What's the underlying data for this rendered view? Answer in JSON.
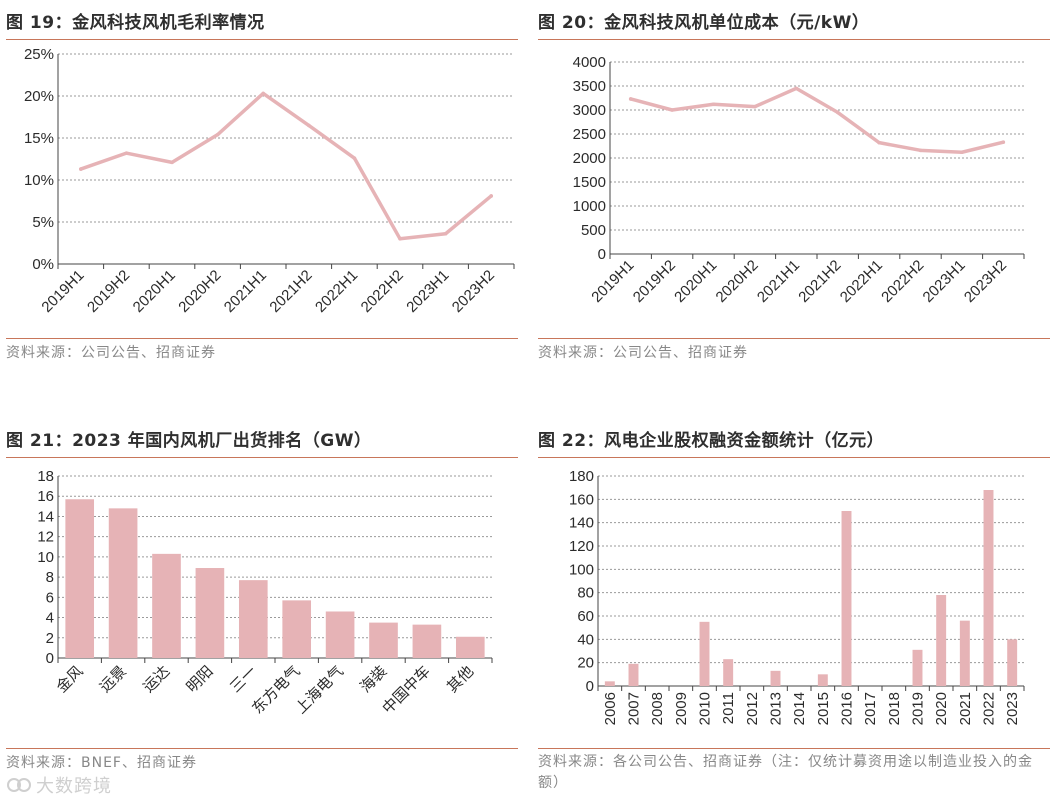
{
  "colors": {
    "series": "#e6b3b6",
    "rule": "#c8765a",
    "grid": "#9a9a9a"
  },
  "charts": [
    {
      "title": "图 19：金风科技风机毛利率情况",
      "source": "资料来源：公司公告、招商证券",
      "chart_data": {
        "type": "line",
        "categories": [
          "2019H1",
          "2019H2",
          "2020H1",
          "2020H2",
          "2021H1",
          "2021H2",
          "2022H1",
          "2022H2",
          "2023H1",
          "2023H2"
        ],
        "values": [
          11.3,
          13.2,
          12.1,
          15.4,
          20.3,
          16.5,
          12.6,
          3.0,
          3.6,
          8.1
        ],
        "ylim": [
          0,
          25
        ],
        "yticks": [
          0,
          5,
          10,
          15,
          20,
          25
        ],
        "ytick_labels": [
          "0%",
          "5%",
          "10%",
          "15%",
          "20%",
          "25%"
        ],
        "grid": true,
        "xlabel": "",
        "ylabel": ""
      }
    },
    {
      "title": "图 20：金风科技风机单位成本（元/kW）",
      "source": "资料来源：公司公告、招商证券",
      "chart_data": {
        "type": "line",
        "categories": [
          "2019H1",
          "2019H2",
          "2020H1",
          "2020H2",
          "2021H1",
          "2021H2",
          "2022H1",
          "2022H2",
          "2023H1",
          "2023H2"
        ],
        "values": [
          3230,
          3000,
          3120,
          3070,
          3450,
          2950,
          2320,
          2160,
          2120,
          2330
        ],
        "ylim": [
          0,
          4000
        ],
        "yticks": [
          0,
          500,
          1000,
          1500,
          2000,
          2500,
          3000,
          3500,
          4000
        ],
        "ytick_labels": [
          "0",
          "500",
          "1000",
          "1500",
          "2000",
          "2500",
          "3000",
          "3500",
          "4000"
        ],
        "grid": true,
        "xlabel": "",
        "ylabel": ""
      }
    },
    {
      "title": "图 21：2023 年国内风机厂出货排名（GW）",
      "source": "资料来源：BNEF、招商证券",
      "chart_data": {
        "type": "bar",
        "categories": [
          "金风",
          "远景",
          "运达",
          "明阳",
          "三一",
          "东方电气",
          "上海电气",
          "海装",
          "中国中车",
          "其他"
        ],
        "values": [
          15.7,
          14.8,
          10.3,
          8.9,
          7.7,
          5.7,
          4.6,
          3.5,
          3.3,
          2.1
        ],
        "ylim": [
          0,
          18
        ],
        "yticks": [
          0,
          2,
          4,
          6,
          8,
          10,
          12,
          14,
          16,
          18
        ],
        "ytick_labels": [
          "0",
          "2",
          "4",
          "6",
          "8",
          "10",
          "12",
          "14",
          "16",
          "18"
        ],
        "grid": true,
        "xlabel": "",
        "ylabel": ""
      }
    },
    {
      "title": "图 22：风电企业股权融资金额统计（亿元）",
      "source": "资料来源：各公司公告、招商证券（注：仅统计募资用途以制造业投入的金额）",
      "chart_data": {
        "type": "bar",
        "categories": [
          "2006",
          "2007",
          "2008",
          "2009",
          "2010",
          "2011",
          "2012",
          "2013",
          "2014",
          "2015",
          "2016",
          "2017",
          "2018",
          "2019",
          "2020",
          "2021",
          "2022",
          "2023"
        ],
        "values": [
          4,
          19,
          0,
          0,
          55,
          23,
          0,
          13,
          0,
          10,
          150,
          0,
          0,
          31,
          78,
          56,
          168,
          40
        ],
        "ylim": [
          0,
          180
        ],
        "yticks": [
          0,
          20,
          40,
          60,
          80,
          100,
          120,
          140,
          160,
          180
        ],
        "ytick_labels": [
          "0",
          "20",
          "40",
          "60",
          "80",
          "100",
          "120",
          "140",
          "160",
          "180"
        ],
        "grid": true,
        "xlabel": "",
        "ylabel": ""
      }
    }
  ],
  "watermark": "大数跨境"
}
